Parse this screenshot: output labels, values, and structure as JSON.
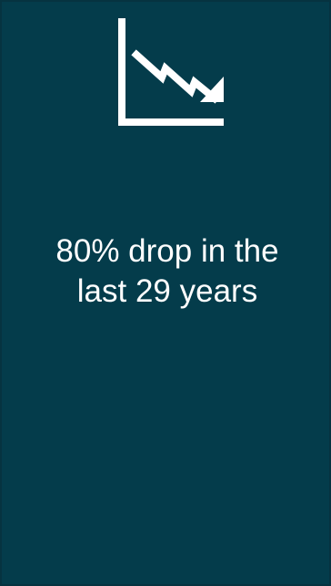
{
  "colors": {
    "card_background": "#043c4b",
    "card_border": "#063340",
    "foreground": "#ffffff"
  },
  "icon": {
    "name": "declining-trend-chart-icon"
  },
  "stat": {
    "line1": "80% drop in the",
    "line2": "last 29 years"
  }
}
